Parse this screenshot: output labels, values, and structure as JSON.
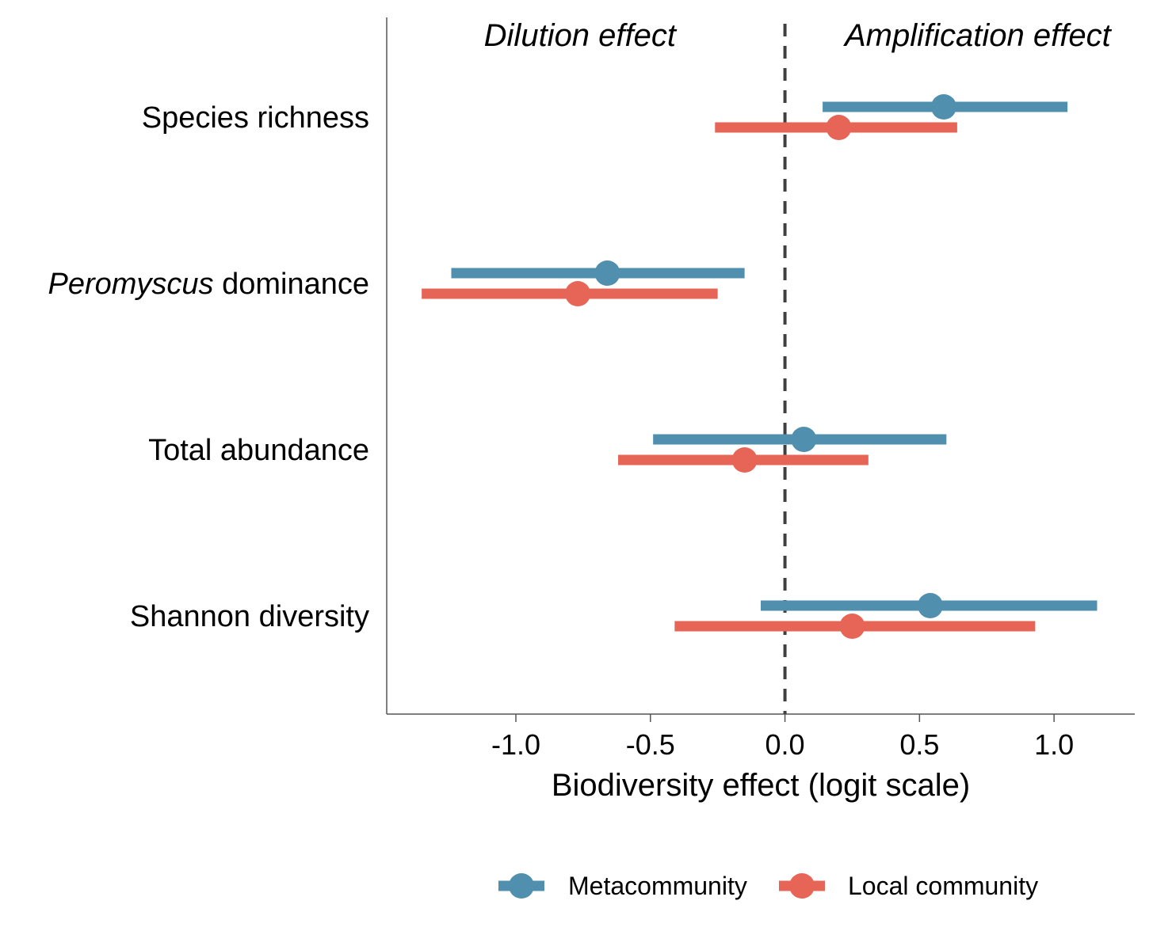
{
  "chart_data": {
    "type": "forest",
    "xlabel": "Biodiversity effect (logit scale)",
    "xlim": [
      -1.48,
      1.3
    ],
    "xticks": [
      -1.0,
      -0.5,
      0.0,
      0.5,
      1.0
    ],
    "xtick_labels": [
      "-1.0",
      "-0.5",
      "0.0",
      "0.5",
      "1.0"
    ],
    "reference_line": 0.0,
    "annotations": {
      "left": "Dilution effect",
      "right": "Amplification effect"
    },
    "categories": [
      {
        "label": "Species richness",
        "italic_prefix": ""
      },
      {
        "label": " dominance",
        "italic_prefix": "Peromyscus"
      },
      {
        "label": "Total abundance",
        "italic_prefix": ""
      },
      {
        "label": "Shannon diversity",
        "italic_prefix": ""
      }
    ],
    "series": [
      {
        "name": "Metacommunity",
        "color": "#508fae",
        "estimates": [
          0.59,
          -0.66,
          0.07,
          0.54
        ],
        "lower": [
          0.14,
          -1.24,
          -0.49,
          -0.09
        ],
        "upper": [
          1.05,
          -0.15,
          0.6,
          1.16
        ]
      },
      {
        "name": "Local community",
        "color": "#e66556",
        "estimates": [
          0.2,
          -0.77,
          -0.15,
          0.25
        ],
        "lower": [
          -0.26,
          -1.35,
          -0.62,
          -0.41
        ],
        "upper": [
          0.64,
          -0.25,
          0.31,
          0.93
        ]
      }
    ],
    "grid": false,
    "legend_position": "bottom"
  }
}
